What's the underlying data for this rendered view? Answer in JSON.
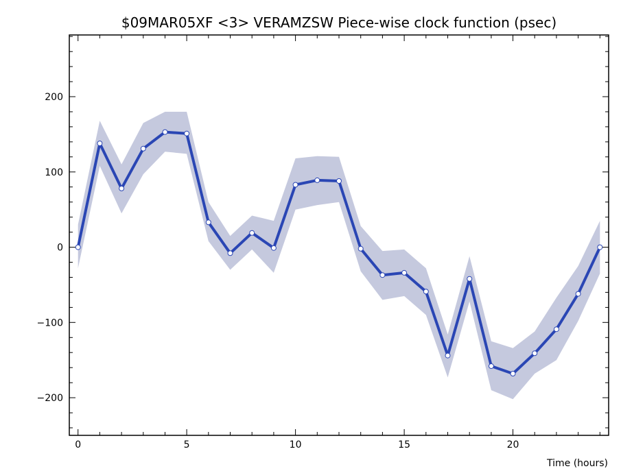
{
  "chart_data": {
    "type": "line",
    "title": "$09MAR05XF <3>  VERAMZSW  Piece-wise clock function (psec)",
    "xlabel": "Time (hours)",
    "ylabel": "",
    "xlim": [
      -0.4,
      24.4
    ],
    "ylim": [
      -250,
      282
    ],
    "x_ticks": [
      0,
      5,
      10,
      15,
      20
    ],
    "y_ticks": [
      200,
      100,
      0,
      -100,
      -200
    ],
    "x_tick_labels": [
      "0",
      "5",
      "10",
      "15",
      "20"
    ],
    "y_tick_labels": [
      "200",
      "100",
      "0",
      "−100",
      "−200"
    ],
    "grid": false,
    "line_color": "#2a46b4",
    "band_color": "#c5c9de",
    "series": [
      {
        "x": [
          0,
          1,
          2,
          3,
          4,
          5,
          6,
          7,
          8,
          9,
          10,
          11,
          12,
          13,
          14,
          15,
          16,
          17,
          18,
          19,
          20,
          21,
          22,
          23,
          24
        ],
        "values": [
          0,
          138,
          78,
          131,
          153,
          151,
          33,
          -8,
          19,
          -1,
          83,
          89,
          88,
          -2,
          -37,
          -34,
          -59,
          -144,
          -42,
          -158,
          -168,
          -141,
          -109,
          -62,
          0
        ],
        "upper": [
          30,
          168,
          110,
          165,
          180,
          180,
          60,
          15,
          42,
          35,
          118,
          121,
          120,
          28,
          -5,
          -3,
          -28,
          -116,
          -12,
          -125,
          -134,
          -112,
          -67,
          -25,
          35
        ],
        "lower": [
          -28,
          108,
          45,
          97,
          127,
          124,
          8,
          -30,
          -3,
          -34,
          50,
          56,
          60,
          -32,
          -70,
          -65,
          -90,
          -173,
          -72,
          -190,
          -202,
          -168,
          -150,
          -98,
          -35
        ]
      }
    ]
  }
}
